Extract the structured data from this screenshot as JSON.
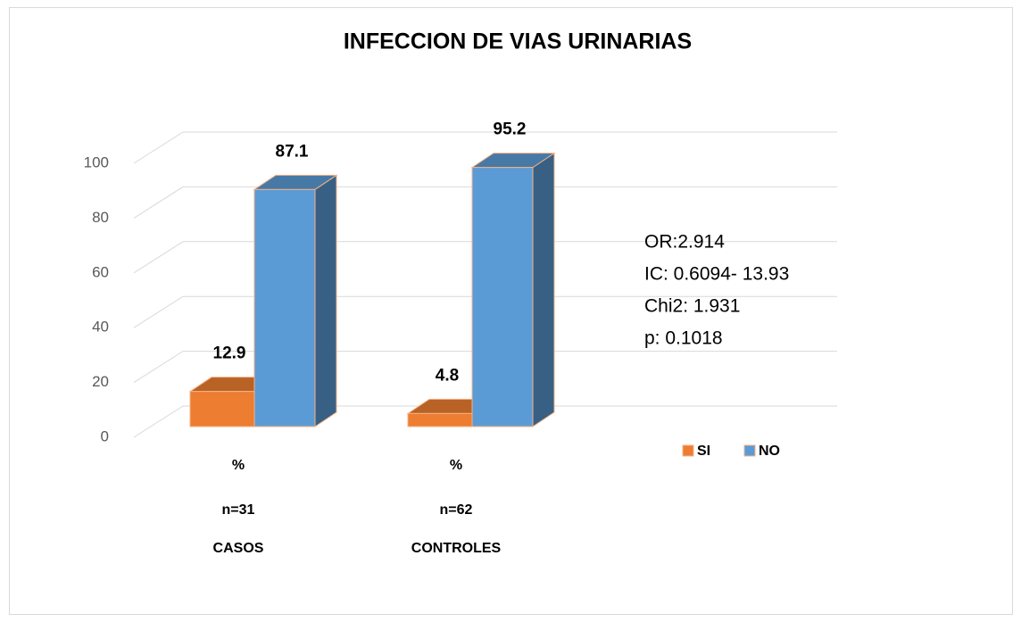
{
  "chart_data": {
    "type": "bar3d",
    "title": "INFECCION  DE VIAS URINARIAS",
    "categories": [
      [
        "%",
        "n=31",
        "CASOS"
      ],
      [
        "%",
        "n=62",
        "CONTROLES"
      ]
    ],
    "series": [
      {
        "name": "SI",
        "color": "#ed7d31",
        "values": [
          12.9,
          4.8
        ]
      },
      {
        "name": "NO",
        "color": "#5b9bd5",
        "values": [
          87.1,
          95.2
        ]
      }
    ],
    "ylim": [
      0,
      100
    ],
    "yticks": [
      0,
      20,
      40,
      60,
      80,
      100
    ],
    "grid": true,
    "annotations": [
      "OR:2.914",
      "IC: 0.6094- 13.93",
      "Chi2:  1.931",
      "p: 0.1018"
    ]
  }
}
